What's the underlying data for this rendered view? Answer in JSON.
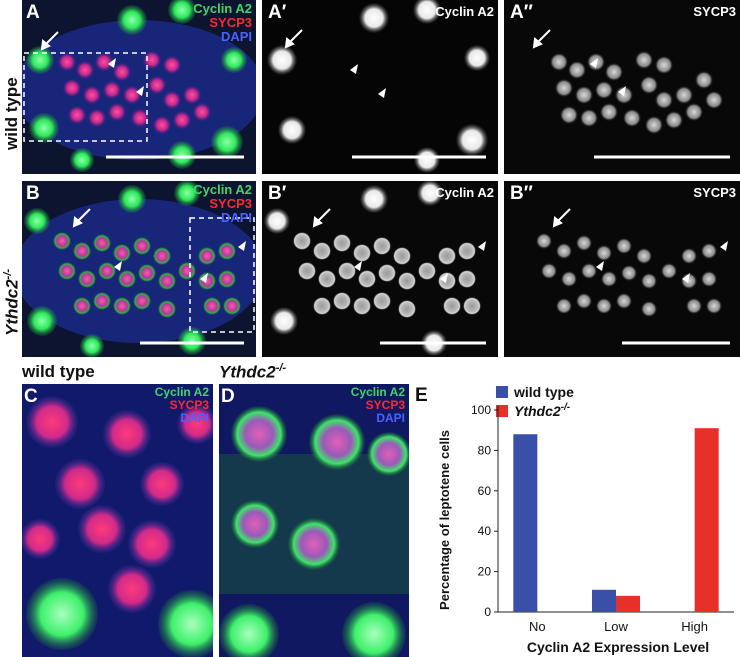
{
  "figure": {
    "rows": {
      "top_label": "wild type",
      "mid_label_gene": "Ythdc2",
      "mid_label_sup": "-/-",
      "bottom_left_title": "wild type",
      "bottom_right_title_gene": "Ythdc2",
      "bottom_right_title_sup": "-/-"
    },
    "panels": {
      "A": {
        "label": "A",
        "channels": [
          "Cyclin A2",
          "SYCP3",
          "DAPI"
        ]
      },
      "A1": {
        "label": "A′",
        "channel": "Cyclin A2"
      },
      "A2": {
        "label": "A″",
        "channel": "SYCP3"
      },
      "B": {
        "label": "B",
        "channels": [
          "Cyclin A2",
          "SYCP3",
          "DAPI"
        ]
      },
      "B1": {
        "label": "B′",
        "channel": "Cyclin A2"
      },
      "B2": {
        "label": "B″",
        "channel": "SYCP3"
      },
      "C": {
        "label": "C",
        "channels": [
          "Cyclin A2",
          "SYCP3",
          "DAPI"
        ]
      },
      "D": {
        "label": "D",
        "channels": [
          "Cyclin A2",
          "SYCP3",
          "DAPI"
        ]
      },
      "E": {
        "label": "E"
      }
    },
    "colors": {
      "cyclin_a2": "#2ee85a",
      "sycp3": "#ff2a2a",
      "dapi": "#2f3fd8",
      "wild_type_bar": "#3a4fa8",
      "mutant_bar": "#e8302a"
    }
  },
  "chart_data": {
    "type": "bar",
    "categories": [
      "No",
      "Low",
      "High"
    ],
    "series": [
      {
        "name": "wild type",
        "values": [
          88,
          11,
          0
        ]
      },
      {
        "name": "Ythdc2-/-",
        "values": [
          0,
          8,
          91
        ]
      }
    ],
    "legend": [
      {
        "text": "wild type",
        "italic": false
      },
      {
        "text": "Ythdc2",
        "sup": "-/-",
        "italic": true
      }
    ],
    "xlabel": "Cyclin A2 Expression Level",
    "ylabel": "Percentage of leptotene cells",
    "ylim": [
      0,
      100
    ],
    "yticks": [
      0,
      20,
      40,
      60,
      80,
      100
    ],
    "grid": false,
    "legend_position": "top-left"
  }
}
